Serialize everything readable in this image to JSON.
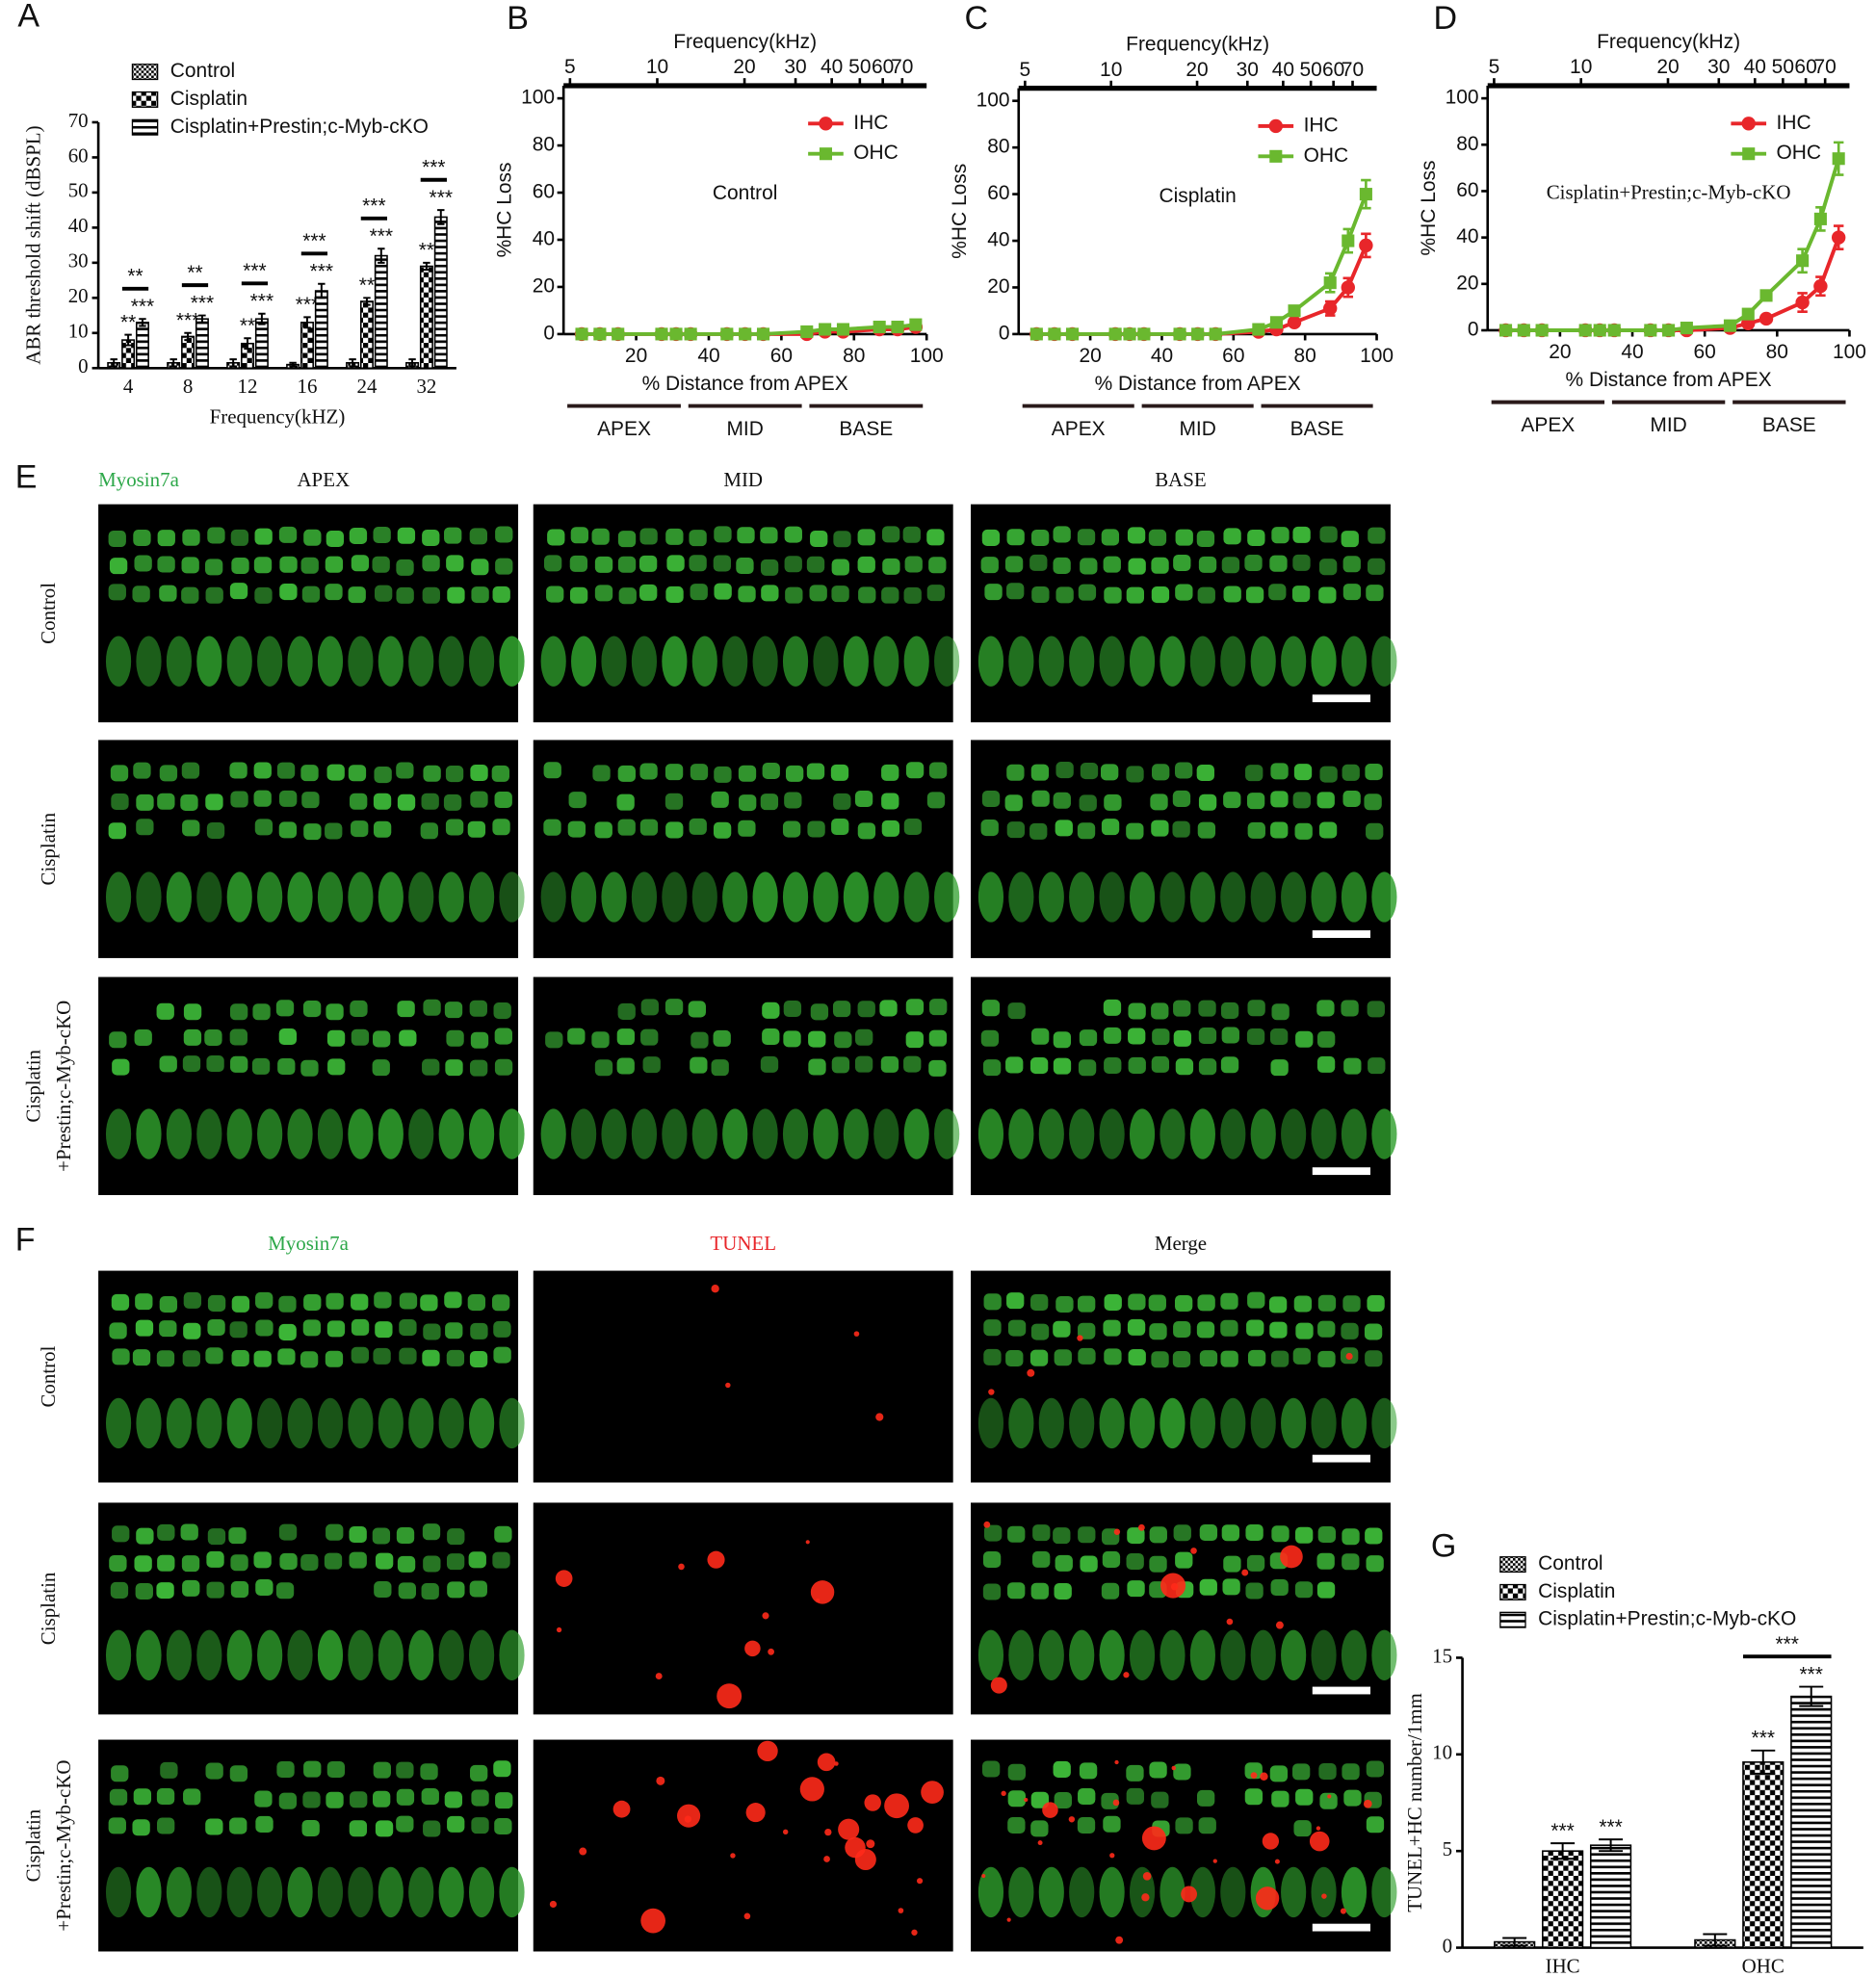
{
  "chart_data": [
    {
      "type": "bar",
      "panel": "A",
      "ylabel": "ABR threshold shift (dBSPL)",
      "xlabel": "Frequency(kHZ)",
      "categories": [
        "4",
        "8",
        "12",
        "16",
        "24",
        "32"
      ],
      "series": [
        {
          "name": "Control",
          "pattern": "dots",
          "values": [
            1.5,
            1.5,
            1.5,
            1,
            1.5,
            1.5
          ],
          "errors": [
            1,
            1,
            1,
            0.5,
            1,
            1
          ]
        },
        {
          "name": "Cisplatin",
          "pattern": "checker",
          "values": [
            8,
            9,
            7,
            13,
            19,
            29
          ],
          "errors": [
            1.5,
            1,
            1.5,
            1.5,
            1,
            1
          ],
          "significance": [
            "**",
            "***",
            "**",
            "***",
            "**",
            "**"
          ]
        },
        {
          "name": "Cisplatin+Prestin;c-Myb-cKO",
          "pattern": "stripes",
          "values": [
            13,
            14,
            14,
            22,
            32,
            43
          ],
          "errors": [
            1,
            1,
            1.5,
            2,
            2,
            2
          ],
          "significance": [
            "***",
            "***",
            "***",
            "***",
            "***",
            "***"
          ]
        }
      ],
      "comparisons": [
        "**",
        "**",
        "***",
        "***",
        "***",
        "***"
      ],
      "ylim": [
        0,
        70
      ],
      "yticks": [
        0,
        10,
        20,
        30,
        40,
        50,
        60,
        70
      ]
    },
    {
      "type": "line",
      "panel": "B",
      "annotation": "Control",
      "ylabel": "%HC  Loss",
      "xlabel": "% Distance from APEX",
      "x2label": "Frequency(kHz)",
      "x": [
        5,
        10,
        15,
        27,
        31,
        35,
        45,
        50,
        55,
        67,
        72,
        77,
        87,
        92,
        97
      ],
      "series": [
        {
          "name": "IHC",
          "color": "#e8262a",
          "marker": "circle",
          "values": [
            0,
            0,
            0,
            0,
            0,
            0,
            0,
            0,
            0,
            0,
            1,
            1,
            2,
            2,
            3
          ]
        },
        {
          "name": "OHC",
          "color": "#6ab82f",
          "marker": "square",
          "values": [
            0,
            0,
            0,
            0,
            0,
            0,
            0,
            0,
            0,
            1,
            2,
            2,
            3,
            3,
            4
          ]
        }
      ],
      "xlim": [
        0,
        100
      ],
      "xticks": [
        20,
        40,
        60,
        80,
        100
      ],
      "ylim": [
        0,
        100
      ],
      "yticks": [
        0,
        20,
        40,
        60,
        80,
        100
      ],
      "x2lim": [
        4.75,
        85
      ],
      "x2ticks": [
        5,
        10,
        20,
        30,
        40,
        50,
        60,
        70
      ],
      "x2log": true,
      "regions": [
        "APEX",
        "MID",
        "BASE"
      ]
    },
    {
      "type": "line",
      "panel": "C",
      "annotation": "Cisplatin",
      "ylabel": "%HC  Loss",
      "xlabel": "% Distance from APEX",
      "x2label": "Frequency(kHz)",
      "x": [
        5,
        10,
        15,
        27,
        31,
        35,
        45,
        50,
        55,
        67,
        72,
        77,
        87,
        92,
        97
      ],
      "series": [
        {
          "name": "IHC",
          "color": "#e8262a",
          "marker": "circle",
          "values": [
            0,
            0,
            0,
            0,
            0,
            0,
            0,
            0,
            0,
            1,
            2,
            5,
            11,
            20,
            38
          ],
          "errors": [
            0,
            0,
            0,
            0,
            0,
            0,
            0,
            0,
            0,
            0.5,
            1,
            1.5,
            3,
            4,
            5
          ]
        },
        {
          "name": "OHC",
          "color": "#6ab82f",
          "marker": "square",
          "values": [
            0,
            0,
            0,
            0,
            0,
            0,
            0,
            0,
            0,
            2,
            5,
            10,
            22,
            40,
            60
          ],
          "errors": [
            0,
            0,
            0,
            0,
            0,
            0,
            0,
            0,
            0,
            1,
            1.5,
            2,
            4,
            5,
            6
          ]
        }
      ],
      "xlim": [
        0,
        100
      ],
      "xticks": [
        20,
        40,
        60,
        80,
        100
      ],
      "ylim": [
        0,
        100
      ],
      "yticks": [
        0,
        20,
        40,
        60,
        80,
        100
      ],
      "x2lim": [
        4.75,
        85
      ],
      "x2ticks": [
        5,
        10,
        20,
        30,
        40,
        50,
        60,
        70
      ],
      "x2log": true,
      "regions": [
        "APEX",
        "MID",
        "BASE"
      ]
    },
    {
      "type": "line",
      "panel": "D",
      "annotation": "Cisplatin+Prestin;c-Myb-cKO",
      "ylabel": "%HC  Loss",
      "xlabel": "% Distance from APEX",
      "x2label": "Frequency(kHz)",
      "x": [
        5,
        10,
        15,
        27,
        31,
        35,
        45,
        50,
        55,
        67,
        72,
        77,
        87,
        92,
        97
      ],
      "series": [
        {
          "name": "IHC",
          "color": "#e8262a",
          "marker": "circle",
          "values": [
            0,
            0,
            0,
            0,
            0,
            0,
            0,
            0,
            0,
            1,
            3,
            5,
            12,
            19,
            40
          ],
          "errors": [
            0,
            0,
            0,
            0,
            0,
            0,
            0,
            0,
            0,
            1,
            1,
            1.5,
            4,
            4,
            5
          ]
        },
        {
          "name": "OHC",
          "color": "#6ab82f",
          "marker": "square",
          "values": [
            0,
            0,
            0,
            0,
            0,
            0,
            0,
            0,
            1,
            2,
            7,
            15,
            30,
            48,
            74
          ],
          "errors": [
            0,
            0,
            0,
            0,
            0,
            0,
            0,
            0,
            1,
            1,
            2,
            2,
            5,
            5,
            7
          ]
        }
      ],
      "xlim": [
        0,
        100
      ],
      "xticks": [
        20,
        40,
        60,
        80,
        100
      ],
      "ylim": [
        0,
        100
      ],
      "yticks": [
        0,
        20,
        40,
        60,
        80,
        100
      ],
      "x2lim": [
        4.75,
        85
      ],
      "x2ticks": [
        5,
        10,
        20,
        30,
        40,
        50,
        60,
        70
      ],
      "x2log": true,
      "regions": [
        "APEX",
        "MID",
        "BASE"
      ]
    },
    {
      "type": "bar",
      "panel": "G",
      "ylabel": "TUNEL+HC number/1mm",
      "categories": [
        "IHC",
        "OHC"
      ],
      "series": [
        {
          "name": "Control",
          "pattern": "dots",
          "values": [
            0.3,
            0.4
          ],
          "errors": [
            0.2,
            0.3
          ]
        },
        {
          "name": "Cisplatin",
          "pattern": "checker",
          "values": [
            5,
            9.6
          ],
          "errors": [
            0.4,
            0.6
          ],
          "significance": [
            "***",
            "***"
          ]
        },
        {
          "name": "Cisplatin+Prestin;c-Myb-cKO",
          "pattern": "stripes",
          "values": [
            5.3,
            13
          ],
          "errors": [
            0.3,
            0.5
          ],
          "significance": [
            "***",
            "***"
          ]
        }
      ],
      "comparisons": [
        null,
        "***"
      ],
      "ylim": [
        0,
        15
      ],
      "yticks": [
        0,
        5,
        10,
        15
      ]
    }
  ],
  "figure_e": {
    "panel": "E",
    "stain": "Myosin7a",
    "columns": [
      "APEX",
      "MID",
      "BASE"
    ],
    "rows": [
      [
        "Control"
      ],
      [
        "Cisplatin"
      ],
      [
        "Cisplatin",
        "+Prestin;c-Myb-cKO"
      ]
    ]
  },
  "figure_f": {
    "panel": "F",
    "columns": [
      "Myosin7a",
      "TUNEL",
      "Merge"
    ],
    "rows": [
      [
        "Control"
      ],
      [
        "Cisplatin"
      ],
      [
        "Cisplatin",
        "+Prestin;c-Myb-cKO"
      ]
    ]
  }
}
